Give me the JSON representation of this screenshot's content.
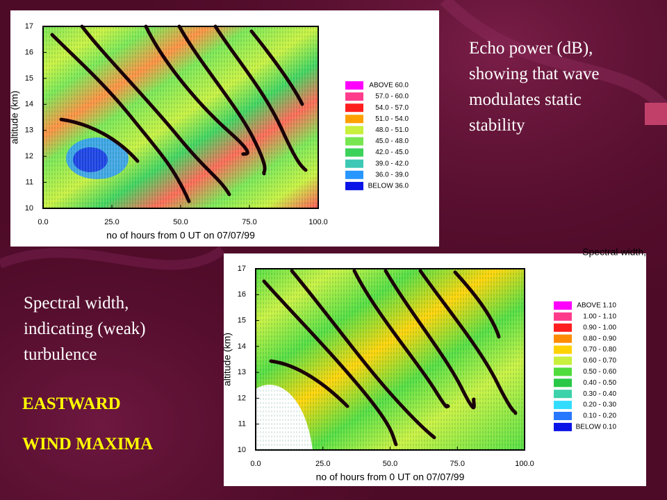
{
  "slide": {
    "notes": [
      "Echo power (dB),",
      "showing that wave",
      "modulates static",
      "stability"
    ],
    "notes2": [
      "Spectral width,",
      "indicating (weak)",
      "turbulence"
    ],
    "highlight": [
      "EASTWARD",
      "WIND MAXIMA"
    ]
  },
  "chart_data": [
    {
      "type": "heatmap",
      "xlabel": "no of hours from 0 UT on 07/07/99",
      "ylabel": "altitude (km)",
      "xlim": [
        0,
        100
      ],
      "ylim": [
        10,
        17
      ],
      "xticks": [
        {
          "value": 0,
          "label": "0.0"
        },
        {
          "value": 25,
          "label": "25.0"
        },
        {
          "value": 50,
          "label": "50.0"
        },
        {
          "value": 75,
          "label": "75.0"
        },
        {
          "value": 100,
          "label": "100.0"
        }
      ],
      "yticks": [
        10,
        11,
        12,
        13,
        14,
        15,
        16,
        17
      ],
      "legend": [
        {
          "label": "ABOVE  60.0",
          "color": "#ff00ff"
        },
        {
          "label": "57.0 - 60.0",
          "color": "#ff3c8c"
        },
        {
          "label": "54.0 - 57.0",
          "color": "#ff1e1e"
        },
        {
          "label": "51.0 - 54.0",
          "color": "#ffa000"
        },
        {
          "label": "48.0 - 51.0",
          "color": "#c8f03c"
        },
        {
          "label": "45.0 - 48.0",
          "color": "#78e650"
        },
        {
          "label": "42.0 - 45.0",
          "color": "#3cd25a"
        },
        {
          "label": "39.0 - 42.0",
          "color": "#3cc8b4"
        },
        {
          "label": "36.0 - 39.0",
          "color": "#2896ff"
        },
        {
          "label": "BELOW  36.0",
          "color": "#0a14e6"
        }
      ]
    },
    {
      "type": "heatmap",
      "title": "Spectral width,",
      "xlabel": "no of hours from 0 UT on 07/07/99",
      "ylabel": "altitude (km)",
      "xlim": [
        0,
        100
      ],
      "ylim": [
        10,
        17
      ],
      "xticks": [
        {
          "value": 0,
          "label": "0.0"
        },
        {
          "value": 25,
          "label": "25.0"
        },
        {
          "value": 50,
          "label": "50.0"
        },
        {
          "value": 75,
          "label": "75.0"
        },
        {
          "value": 100,
          "label": "100.0"
        }
      ],
      "yticks": [
        10,
        11,
        12,
        13,
        14,
        15,
        16,
        17
      ],
      "legend": [
        {
          "label": "ABOVE  1.10",
          "color": "#ff00ff"
        },
        {
          "label": "1.00 - 1.10",
          "color": "#ff3c8c"
        },
        {
          "label": "0.90 - 1.00",
          "color": "#ff1e1e"
        },
        {
          "label": "0.80 - 0.90",
          "color": "#ff8c00"
        },
        {
          "label": "0.70 - 0.80",
          "color": "#ffd200"
        },
        {
          "label": "0.60 - 0.70",
          "color": "#c8f03c"
        },
        {
          "label": "0.50 - 0.60",
          "color": "#50dc3c"
        },
        {
          "label": "0.40 - 0.50",
          "color": "#28c846"
        },
        {
          "label": "0.30 - 0.40",
          "color": "#3cd2aa"
        },
        {
          "label": "0.20 - 0.30",
          "color": "#32dcff"
        },
        {
          "label": "0.10 - 0.20",
          "color": "#2878ff"
        },
        {
          "label": "BELOW  0.10",
          "color": "#0a14e6"
        }
      ]
    }
  ]
}
